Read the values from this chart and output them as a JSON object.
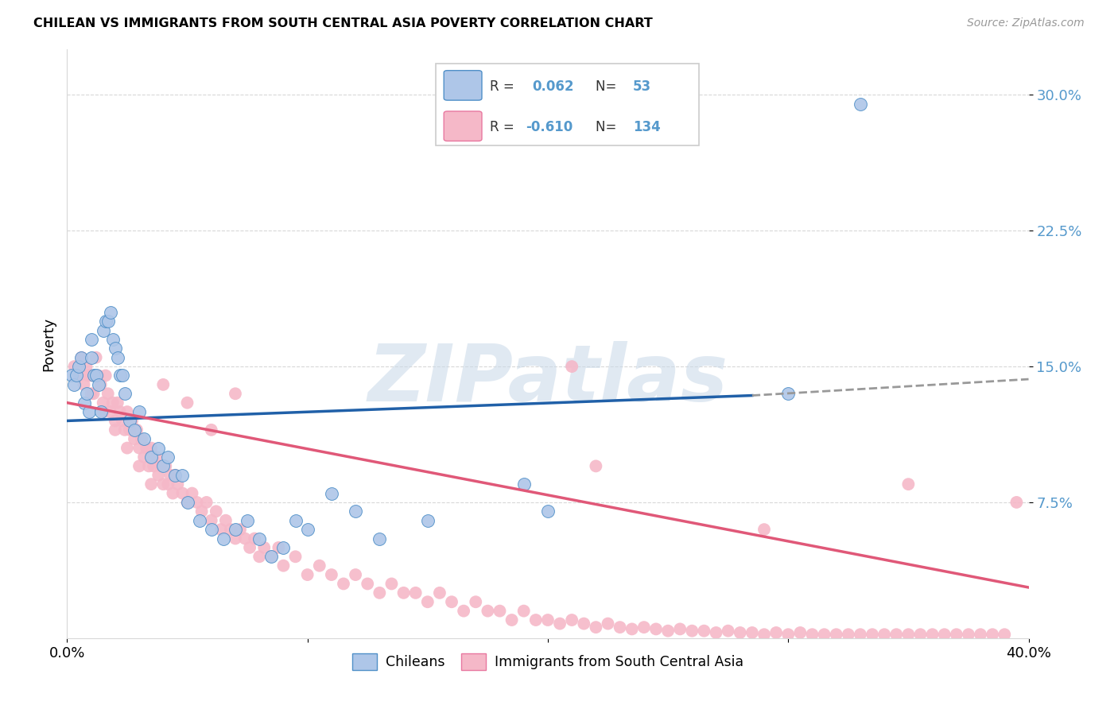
{
  "title": "CHILEAN VS IMMIGRANTS FROM SOUTH CENTRAL ASIA POVERTY CORRELATION CHART",
  "source": "Source: ZipAtlas.com",
  "ylabel": "Poverty",
  "yticks": [
    "7.5%",
    "15.0%",
    "22.5%",
    "30.0%"
  ],
  "ytick_vals": [
    0.075,
    0.15,
    0.225,
    0.3
  ],
  "xmin": 0.0,
  "xmax": 0.4,
  "ymin": 0.0,
  "ymax": 0.325,
  "color_chilean_fill": "#aec6e8",
  "color_chilean_edge": "#5090c8",
  "color_immigrant_fill": "#f5b8c8",
  "color_immigrant_edge": "#e878a0",
  "color_line_chilean": "#2060a8",
  "color_line_immigrant": "#e05878",
  "color_line_dashed": "#999999",
  "color_ytick": "#5599cc",
  "color_grid": "#d8d8d8",
  "watermark": "ZIPatlas",
  "chileans_x": [
    0.002,
    0.003,
    0.004,
    0.005,
    0.006,
    0.007,
    0.008,
    0.009,
    0.01,
    0.01,
    0.011,
    0.012,
    0.013,
    0.014,
    0.015,
    0.016,
    0.017,
    0.018,
    0.019,
    0.02,
    0.021,
    0.022,
    0.023,
    0.024,
    0.026,
    0.028,
    0.03,
    0.032,
    0.035,
    0.038,
    0.04,
    0.042,
    0.045,
    0.048,
    0.05,
    0.055,
    0.06,
    0.065,
    0.07,
    0.075,
    0.08,
    0.085,
    0.09,
    0.095,
    0.1,
    0.11,
    0.12,
    0.13,
    0.15,
    0.19,
    0.2,
    0.3,
    0.33
  ],
  "chileans_y": [
    0.145,
    0.14,
    0.145,
    0.15,
    0.155,
    0.13,
    0.135,
    0.125,
    0.165,
    0.155,
    0.145,
    0.145,
    0.14,
    0.125,
    0.17,
    0.175,
    0.175,
    0.18,
    0.165,
    0.16,
    0.155,
    0.145,
    0.145,
    0.135,
    0.12,
    0.115,
    0.125,
    0.11,
    0.1,
    0.105,
    0.095,
    0.1,
    0.09,
    0.09,
    0.075,
    0.065,
    0.06,
    0.055,
    0.06,
    0.065,
    0.055,
    0.045,
    0.05,
    0.065,
    0.06,
    0.08,
    0.07,
    0.055,
    0.065,
    0.085,
    0.07,
    0.135,
    0.295
  ],
  "immigrants_x": [
    0.003,
    0.005,
    0.006,
    0.007,
    0.008,
    0.009,
    0.01,
    0.011,
    0.012,
    0.013,
    0.014,
    0.015,
    0.016,
    0.017,
    0.018,
    0.019,
    0.02,
    0.021,
    0.022,
    0.023,
    0.024,
    0.025,
    0.026,
    0.027,
    0.028,
    0.029,
    0.03,
    0.031,
    0.032,
    0.033,
    0.034,
    0.035,
    0.036,
    0.037,
    0.038,
    0.039,
    0.04,
    0.041,
    0.042,
    0.043,
    0.044,
    0.045,
    0.046,
    0.048,
    0.05,
    0.052,
    0.054,
    0.056,
    0.058,
    0.06,
    0.062,
    0.064,
    0.066,
    0.068,
    0.07,
    0.072,
    0.074,
    0.076,
    0.078,
    0.08,
    0.082,
    0.085,
    0.088,
    0.09,
    0.095,
    0.1,
    0.105,
    0.11,
    0.115,
    0.12,
    0.125,
    0.13,
    0.135,
    0.14,
    0.145,
    0.15,
    0.155,
    0.16,
    0.165,
    0.17,
    0.175,
    0.18,
    0.185,
    0.19,
    0.195,
    0.2,
    0.205,
    0.21,
    0.215,
    0.22,
    0.225,
    0.23,
    0.235,
    0.24,
    0.245,
    0.25,
    0.255,
    0.26,
    0.265,
    0.27,
    0.275,
    0.28,
    0.285,
    0.29,
    0.295,
    0.3,
    0.305,
    0.31,
    0.315,
    0.32,
    0.325,
    0.33,
    0.335,
    0.34,
    0.345,
    0.35,
    0.355,
    0.36,
    0.365,
    0.37,
    0.375,
    0.38,
    0.385,
    0.39,
    0.01,
    0.015,
    0.02,
    0.025,
    0.03,
    0.035,
    0.04,
    0.05,
    0.06,
    0.07,
    0.21,
    0.22,
    0.29,
    0.35,
    0.395
  ],
  "immigrants_y": [
    0.15,
    0.145,
    0.155,
    0.14,
    0.15,
    0.145,
    0.145,
    0.135,
    0.155,
    0.145,
    0.14,
    0.13,
    0.145,
    0.135,
    0.125,
    0.13,
    0.12,
    0.13,
    0.125,
    0.12,
    0.115,
    0.125,
    0.115,
    0.12,
    0.11,
    0.115,
    0.105,
    0.11,
    0.1,
    0.105,
    0.095,
    0.105,
    0.095,
    0.1,
    0.09,
    0.095,
    0.085,
    0.095,
    0.085,
    0.09,
    0.08,
    0.09,
    0.085,
    0.08,
    0.075,
    0.08,
    0.075,
    0.07,
    0.075,
    0.065,
    0.07,
    0.06,
    0.065,
    0.06,
    0.055,
    0.06,
    0.055,
    0.05,
    0.055,
    0.045,
    0.05,
    0.045,
    0.05,
    0.04,
    0.045,
    0.035,
    0.04,
    0.035,
    0.03,
    0.035,
    0.03,
    0.025,
    0.03,
    0.025,
    0.025,
    0.02,
    0.025,
    0.02,
    0.015,
    0.02,
    0.015,
    0.015,
    0.01,
    0.015,
    0.01,
    0.01,
    0.008,
    0.01,
    0.008,
    0.006,
    0.008,
    0.006,
    0.005,
    0.006,
    0.005,
    0.004,
    0.005,
    0.004,
    0.004,
    0.003,
    0.004,
    0.003,
    0.003,
    0.002,
    0.003,
    0.002,
    0.003,
    0.002,
    0.002,
    0.002,
    0.002,
    0.002,
    0.002,
    0.002,
    0.002,
    0.002,
    0.002,
    0.002,
    0.002,
    0.002,
    0.002,
    0.002,
    0.002,
    0.002,
    0.135,
    0.125,
    0.115,
    0.105,
    0.095,
    0.085,
    0.14,
    0.13,
    0.115,
    0.135,
    0.15,
    0.095,
    0.06,
    0.085,
    0.075
  ]
}
